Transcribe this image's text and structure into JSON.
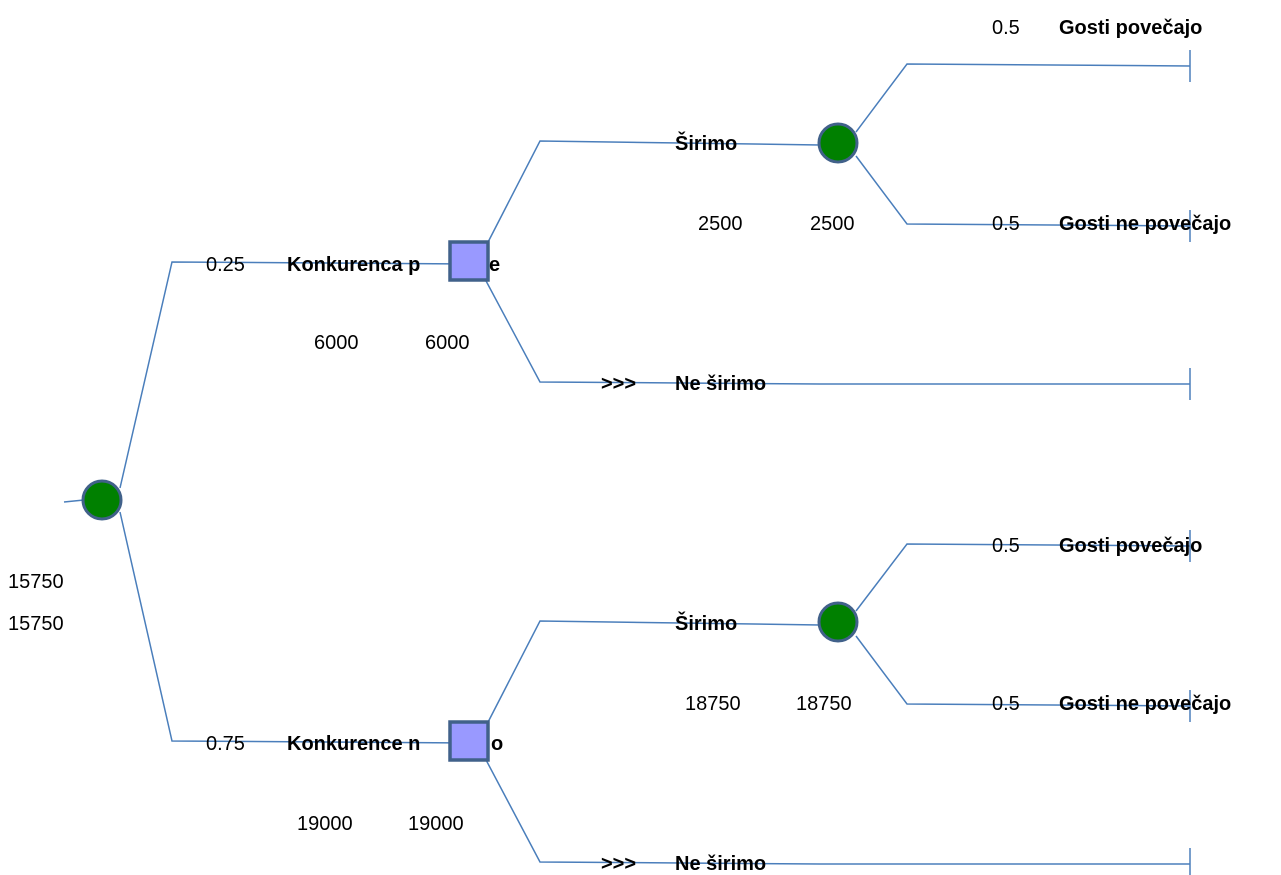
{
  "root": {
    "values": [
      "15750",
      "15750"
    ]
  },
  "branch_top": {
    "probability": "0.25",
    "label": "Konkurenca p",
    "label_tail": "e",
    "values": [
      "6000",
      "6000"
    ],
    "expand": {
      "label": "Širimo",
      "values": [
        "2500",
        "2500"
      ],
      "outcome_up": {
        "probability": "0.5",
        "label": "Gosti povečajo"
      },
      "outcome_down": {
        "probability": "0.5",
        "label": "Gosti ne povečajo"
      }
    },
    "no_expand": {
      "marker": ">>>",
      "label": "Ne širimo"
    }
  },
  "branch_bottom": {
    "probability": "0.75",
    "label": "Konkurence n",
    "label_tail": "o",
    "values": [
      "19000",
      "19000"
    ],
    "expand": {
      "label": "Širimo",
      "values": [
        "18750",
        "18750"
      ],
      "outcome_up": {
        "probability": "0.5",
        "label": "Gosti povečajo"
      },
      "outcome_down": {
        "probability": "0.5",
        "label": "Gosti ne povečajo"
      }
    },
    "no_expand": {
      "marker": ">>>",
      "label": "Ne širimo"
    }
  },
  "colors": {
    "edge": "#4a7ebb",
    "chance_node": "#008000",
    "decision_node": "#9999ff",
    "node_border": "#41618a"
  }
}
